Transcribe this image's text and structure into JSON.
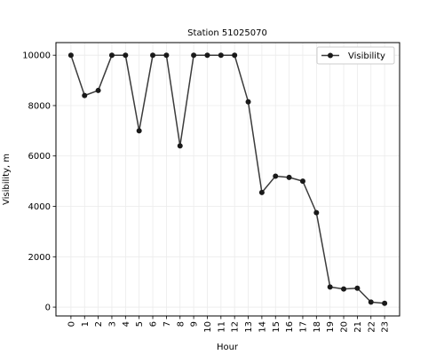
{
  "chart_data": {
    "type": "line",
    "title": "Station 51025070",
    "xlabel": "Hour",
    "ylabel": "Visibility, m",
    "x": [
      0,
      1,
      2,
      3,
      4,
      5,
      6,
      7,
      8,
      9,
      10,
      11,
      12,
      13,
      14,
      15,
      16,
      17,
      18,
      19,
      20,
      21,
      22,
      23
    ],
    "x_tick_labels": [
      "0",
      "1",
      "2",
      "3",
      "4",
      "5",
      "6",
      "7",
      "8",
      "9",
      "10",
      "11",
      "12",
      "13",
      "14",
      "15",
      "16",
      "17",
      "18",
      "19",
      "20",
      "21",
      "22",
      "23"
    ],
    "xlim": [
      -1.1,
      24.1
    ],
    "ylim": [
      -350,
      10500
    ],
    "y_ticks": [
      0,
      2000,
      4000,
      6000,
      8000,
      10000
    ],
    "y_tick_labels": [
      "0",
      "2000",
      "4000",
      "6000",
      "8000",
      "10000"
    ],
    "grid": true,
    "legend_position": "top-right",
    "series": [
      {
        "name": "Visibility",
        "color": "#3b3b3b",
        "marker_color": "#1a1a1a",
        "values": [
          10000,
          8400,
          8600,
          10000,
          10000,
          7000,
          10000,
          10000,
          6400,
          10000,
          10000,
          10000,
          10000,
          8150,
          4550,
          5200,
          5150,
          5000,
          3750,
          800,
          720,
          750,
          200,
          150
        ]
      }
    ]
  }
}
